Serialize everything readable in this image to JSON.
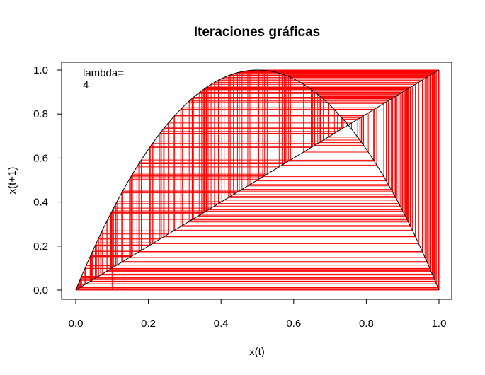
{
  "chart_data": {
    "type": "line",
    "title": "Iteraciones gráficas",
    "xlabel": "x(t)",
    "ylabel": "x(t+1)",
    "xlim": [
      0,
      1
    ],
    "ylim": [
      0,
      1
    ],
    "x_ticks": [
      0.0,
      0.2,
      0.4,
      0.6,
      0.8,
      1.0
    ],
    "y_ticks": [
      0.0,
      0.2,
      0.4,
      0.6,
      0.8,
      1.0
    ],
    "x_tick_labels": [
      "0.0",
      "0.2",
      "0.4",
      "0.6",
      "0.8",
      "1.0"
    ],
    "y_tick_labels": [
      "0.0",
      "0.2",
      "0.4",
      "0.6",
      "0.8",
      "1.0"
    ],
    "grid": false,
    "annotation": {
      "line1": "lambda=",
      "line2": "4",
      "position": "top-left"
    },
    "lambda": 4,
    "x0": 0.1,
    "iterations": 200,
    "series": [
      {
        "kind": "curve",
        "function": "lambda*x*(1-x)",
        "color": "#000000"
      },
      {
        "kind": "diagonal",
        "function": "x",
        "color": "#000000"
      },
      {
        "kind": "cobweb",
        "color": "#ff0000"
      }
    ]
  }
}
